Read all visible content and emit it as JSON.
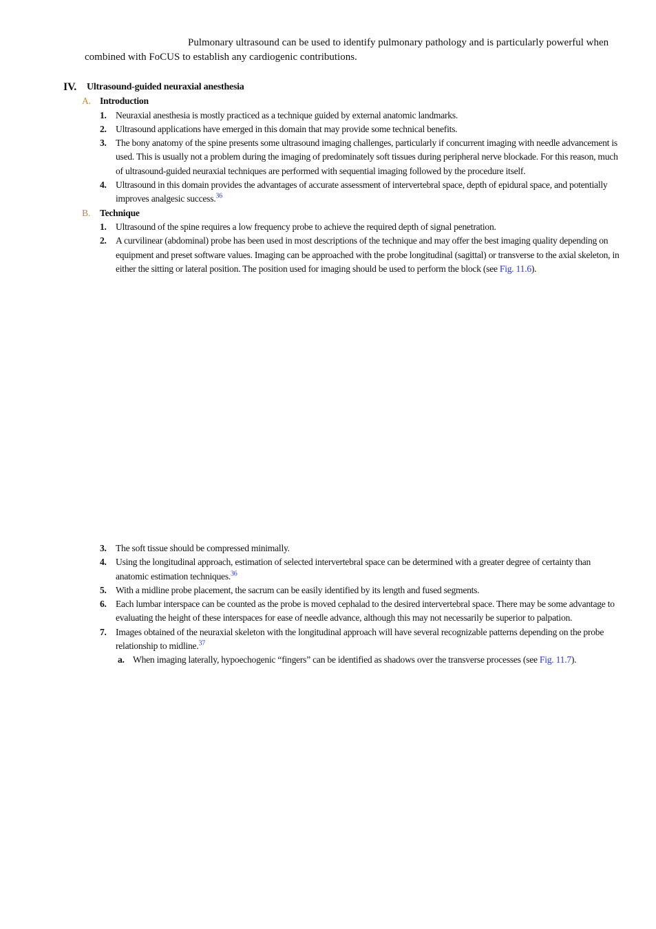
{
  "intro": {
    "text": "Pulmonary ultrasound can be used to identify pulmonary pathology and is particularly powerful when combined with FoCUS to establish any cardiogenic contributions."
  },
  "section": {
    "number": "IV.",
    "title": "Ultrasound-guided neuraxial anesthesia",
    "subsections": [
      {
        "letter": "A.",
        "title": "Introduction",
        "items": [
          {
            "number": "1.",
            "text": "Neuraxial anesthesia is mostly practiced as a technique guided by external anatomic landmarks."
          },
          {
            "number": "2.",
            "text": "Ultrasound applications have emerged in this domain that may provide some technical benefits."
          },
          {
            "number": "3.",
            "text": "The bony anatomy of the spine presents some ultrasound imaging challenges, particularly if concurrent imaging with needle advancement is used. This is usually not a problem during the imaging of predominately soft tissues during peripheral nerve blockade. For this reason, much of ultrasound-guided neuraxial techniques are performed with sequential imaging followed by the procedure itself."
          },
          {
            "number": "4.",
            "text": "Ultrasound in this domain provides the advantages of accurate assessment of intervertebral space, depth of epidural space, and potentially improves analgesic success.",
            "ref": "36"
          }
        ]
      },
      {
        "letter": "B.",
        "title": "Technique",
        "items": [
          {
            "number": "1.",
            "text": "Ultrasound of the spine requires a low frequency probe to achieve the required depth of signal penetration."
          },
          {
            "number": "2.",
            "text": "A curvilinear (abdominal) probe has been used in most descriptions of the technique and may offer the best imaging quality depending on equipment and preset software values. Imaging can be approached with the probe longitudinal (sagittal) or transverse to the axial skeleton, in either the sitting or lateral position. The position used for imaging should be used to perform the block (see ",
            "link": "Fig. 11.6",
            "after": ")."
          }
        ]
      }
    ]
  },
  "continued_items": [
    {
      "number": "3.",
      "text": "The soft tissue should be compressed minimally."
    },
    {
      "number": "4.",
      "text": "Using the longitudinal approach, estimation of selected intervertebral space can be determined with a greater degree of certainty than anatomic estimation techniques.",
      "ref": "36"
    },
    {
      "number": "5.",
      "text": "With a midline probe placement, the sacrum can be easily identified by its length and fused segments."
    },
    {
      "number": "6.",
      "text": "Each lumbar interspace can be counted as the probe is moved cephalad to the desired intervertebral space. There may be some advantage to evaluating the height of these interspaces for ease of needle advance, although this may not necessarily be superior to palpation."
    },
    {
      "number": "7.",
      "text": "Images obtained of the neuraxial skeleton with the longitudinal approach will have several recognizable patterns depending on the probe relationship to midline.",
      "ref": "37",
      "subitems": [
        {
          "letter": "a.",
          "text": "When imaging laterally, hypoechogenic “fingers” can be identified as shadows over the transverse processes (see ",
          "link": "Fig. 11.7",
          "after": ")."
        }
      ]
    }
  ]
}
